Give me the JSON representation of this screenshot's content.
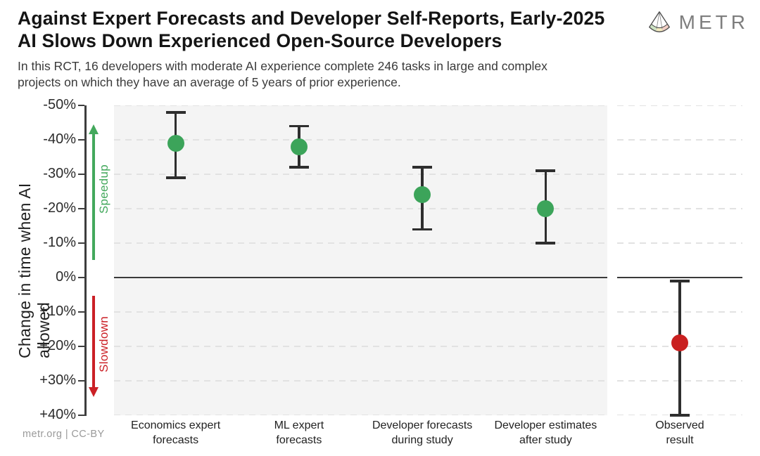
{
  "header": {
    "title_line1": "Against Expert Forecasts and Developer Self-Reports, Early-2025",
    "title_line2": "AI Slows Down Experienced Open-Source Developers",
    "subtitle_line1": "In this RCT, 16 developers with moderate AI experience complete 246 tasks in large and complex",
    "subtitle_line2": "projects on which they have an average of 5 years of prior experience.",
    "logo_text": "METR"
  },
  "footer": {
    "credit": "metr.org | CC-BY"
  },
  "chart_data": {
    "type": "scatter",
    "title": "Against Expert Forecasts and Developer Self-Reports, Early-2025 AI Slows Down Experienced Open-Source Developers",
    "ylabel": "Change in time when AI allowed",
    "ylim": [
      -50,
      40
    ],
    "y_axis_inverted": true,
    "grid": "horizontal-dashed",
    "y_ticks": [
      {
        "label": "-50%",
        "value": -50
      },
      {
        "label": "-40%",
        "value": -40
      },
      {
        "label": "-30%",
        "value": -30
      },
      {
        "label": "-20%",
        "value": -20
      },
      {
        "label": "-10%",
        "value": -10
      },
      {
        "label": "0%",
        "value": 0
      },
      {
        "label": "+10%",
        "value": 10
      },
      {
        "label": "+20%",
        "value": 20
      },
      {
        "label": "+30%",
        "value": 30
      },
      {
        "label": "+40%",
        "value": 40
      }
    ],
    "annotations": {
      "speedup": {
        "label": "Speedup",
        "color": "#43a85c",
        "direction": "up"
      },
      "slowdown": {
        "label": "Slowdown",
        "color": "#cb2026",
        "direction": "down"
      }
    },
    "colors": {
      "forecast_marker": "#3ca45a",
      "observed_marker": "#c92020",
      "error_bar": "#2e2e2e",
      "zero_line": "#3a3a3a",
      "panel_bg": "#f4f4f4"
    },
    "points": [
      {
        "category": "Economics expert forecasts",
        "label_lines": [
          "Economics expert",
          "forecasts"
        ],
        "value": -39,
        "ci": [
          -48,
          -29
        ],
        "color": "#3ca45a",
        "panel": "main"
      },
      {
        "category": "ML expert forecasts",
        "label_lines": [
          "ML expert",
          "forecasts"
        ],
        "value": -38,
        "ci": [
          -44,
          -32
        ],
        "color": "#3ca45a",
        "panel": "main"
      },
      {
        "category": "Developer forecasts during study",
        "label_lines": [
          "Developer forecasts",
          "during study"
        ],
        "value": -24,
        "ci": [
          -32,
          -14
        ],
        "color": "#3ca45a",
        "panel": "main"
      },
      {
        "category": "Developer estimates after study",
        "label_lines": [
          "Developer estimates",
          "after study"
        ],
        "value": -20,
        "ci": [
          -31,
          -10
        ],
        "color": "#3ca45a",
        "panel": "main"
      },
      {
        "category": "Observed result",
        "label_lines": [
          "Observed",
          "result"
        ],
        "value": 19,
        "ci": [
          1,
          40
        ],
        "color": "#c92020",
        "panel": "observed"
      }
    ]
  }
}
